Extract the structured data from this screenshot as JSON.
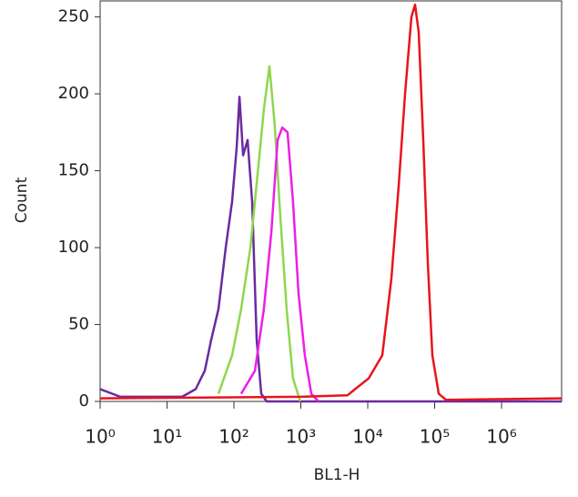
{
  "chart_data": {
    "type": "line",
    "xlabel": "BL1-H",
    "ylabel": "Count",
    "xscale": "log",
    "xlim": [
      1,
      7900000
    ],
    "ylim": [
      0,
      261
    ],
    "xticks": [
      {
        "value": 1,
        "label": "10⁰"
      },
      {
        "value": 10,
        "label": "10¹"
      },
      {
        "value": 100,
        "label": "10²"
      },
      {
        "value": 1000,
        "label": "10³"
      },
      {
        "value": 10000,
        "label": "10⁴"
      },
      {
        "value": 100000,
        "label": "10⁵"
      },
      {
        "value": 1000000,
        "label": "10⁶"
      }
    ],
    "yticks": [
      0,
      50,
      100,
      150,
      200,
      250
    ],
    "series": [
      {
        "color": "#6a2aa0",
        "x": [
          1,
          2,
          16.8,
          26.8,
          36.7,
          45.7,
          58.7,
          75.4,
          93.9,
          110,
          121,
          137,
          160,
          187,
          219,
          256,
          309,
          7900000
        ],
        "values": [
          8,
          3,
          3,
          8,
          20,
          40,
          60,
          100,
          130,
          165,
          198,
          160,
          170,
          130,
          40,
          5,
          0,
          0
        ]
      },
      {
        "color": "#8fd650",
        "x": [
          58.7,
          93.9,
          128,
          176,
          240,
          280,
          339,
          407,
          494,
          613,
          764,
          982
        ],
        "values": [
          5,
          30,
          60,
          100,
          160,
          190,
          218,
          180,
          120,
          60,
          15,
          0
        ]
      },
      {
        "color": "#ee1ee6",
        "x": [
          128,
          206,
          280,
          362,
          450,
          527,
          633,
          764,
          923,
          1147,
          1433,
          1836
        ],
        "values": [
          5,
          20,
          60,
          110,
          170,
          178,
          175,
          130,
          70,
          30,
          5,
          0
        ]
      },
      {
        "color": "#e8141c",
        "x": [
          1,
          1000,
          5000,
          6460,
          10320,
          16500,
          22600,
          29000,
          36100,
          45000,
          50900,
          57800,
          67600,
          79100,
          92400,
          115000,
          148000,
          7900000
        ],
        "values": [
          2,
          3,
          4,
          8,
          15,
          30,
          80,
          140,
          200,
          250,
          258,
          240,
          170,
          90,
          30,
          5,
          1,
          2
        ]
      }
    ]
  }
}
